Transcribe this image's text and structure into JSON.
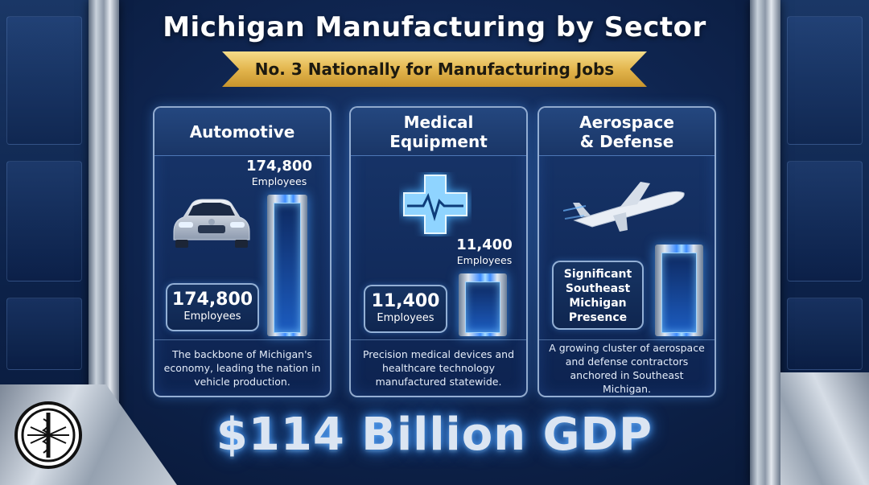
{
  "title": "Michigan Manufacturing by Sector",
  "ribbon": "No. 3 Nationally for Manufacturing Jobs",
  "cards": [
    {
      "heading": "Automotive",
      "icon": "car-icon",
      "top_value": "174,800",
      "top_label": "Employees",
      "bubble_value": "174,800",
      "bubble_label": "Employees",
      "description": "The backbone of Michigan's economy, leading the nation in vehicle production."
    },
    {
      "heading_line1": "Medical",
      "heading_line2": "Equipment",
      "icon": "medical-cross-icon",
      "top_value": "11,400",
      "top_label": "Employees",
      "bubble_value": "11,400",
      "bubble_label": "Employees",
      "description": "Precision medical devices and healthcare technology manufactured statewide."
    },
    {
      "heading_line1": "Aerospace",
      "heading_line2": "& Defense",
      "icon": "airplane-icon",
      "bubble_lines": [
        "Significant",
        "Southeast",
        "Michigan",
        "Presence"
      ],
      "description": "A growing cluster of aerospace and defense contractors anchored in Southeast Michigan."
    }
  ],
  "gdp": "$114 Billion GDP",
  "colors": {
    "accent_blue": "#3d8cff",
    "ribbon_gold": "#e3b64e",
    "background": "#0f2550"
  }
}
